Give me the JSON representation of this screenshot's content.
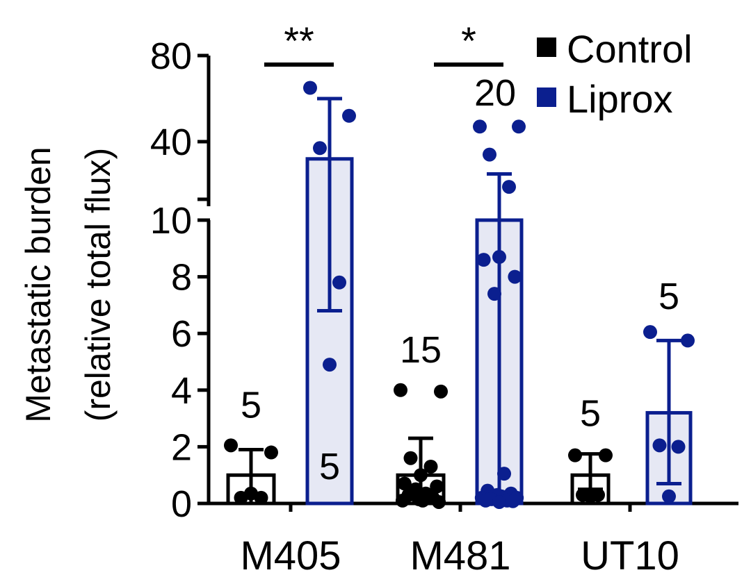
{
  "chart_data": {
    "type": "bar",
    "ylabel": "Metastatic burden",
    "ylabel_sub": "(relative total flux)",
    "y_axis": {
      "broken": true,
      "lower_range": [
        0,
        10
      ],
      "upper_range": [
        10,
        80
      ],
      "lower_ticks": [
        "0",
        "2",
        "4",
        "6",
        "8",
        "10"
      ],
      "upper_ticks": [
        "40",
        "80"
      ]
    },
    "categories": [
      "M405",
      "M481",
      "UT10"
    ],
    "legend": {
      "placement": "top-right",
      "entries": [
        {
          "name": "Control",
          "color": "#000000"
        },
        {
          "name": "Liprox",
          "color": "#0b1f8f"
        }
      ]
    },
    "series": [
      {
        "name": "Control",
        "color": "#000000",
        "fill": "#ffffff",
        "groups": [
          {
            "category": "M405",
            "mean": 1.0,
            "err_low": 0.0,
            "err_high": 1.9,
            "n": "5",
            "points": [
              2.05,
              1.8,
              0.2,
              0.2,
              0.35
            ]
          },
          {
            "category": "M481",
            "mean": 1.0,
            "err_low": 0.0,
            "err_high": 2.3,
            "n": "15",
            "points": [
              4.0,
              3.95,
              1.6,
              1.3,
              1.0,
              0.7,
              0.6,
              0.5,
              0.35,
              0.3,
              0.2,
              0.15,
              0.1,
              0.1,
              0.05
            ]
          },
          {
            "category": "UT10",
            "mean": 1.0,
            "err_low": 0.5,
            "err_high": 1.75,
            "n": "5",
            "points": [
              1.7,
              1.7,
              0.3,
              0.3,
              0.25
            ]
          }
        ]
      },
      {
        "name": "Liprox",
        "color": "#0b1f8f",
        "fill": "#e6e8f4",
        "groups": [
          {
            "category": "M405",
            "mean": 32,
            "err_low": 6.8,
            "err_high": 60,
            "n": "5",
            "points": [
              65,
              52,
              37,
              7.8,
              4.9
            ]
          },
          {
            "category": "M481",
            "mean": 10,
            "err_low": 0.0,
            "err_high": 25,
            "n": "20",
            "points": [
              47,
              47,
              34,
              19,
              8.7,
              8.6,
              8.0,
              7.4,
              1.05,
              0.45,
              0.35,
              0.3,
              0.25,
              0.2,
              0.2,
              0.15,
              0.1,
              0.1,
              0.08,
              0.05
            ]
          },
          {
            "category": "UT10",
            "mean": 3.2,
            "err_low": 0.7,
            "err_high": 5.75,
            "n": "5",
            "points": [
              6.05,
              5.75,
              2.05,
              2.0,
              0.25
            ]
          }
        ]
      }
    ],
    "significance": [
      {
        "category": "M405",
        "label": "**"
      },
      {
        "category": "M481",
        "label": "*"
      }
    ]
  }
}
